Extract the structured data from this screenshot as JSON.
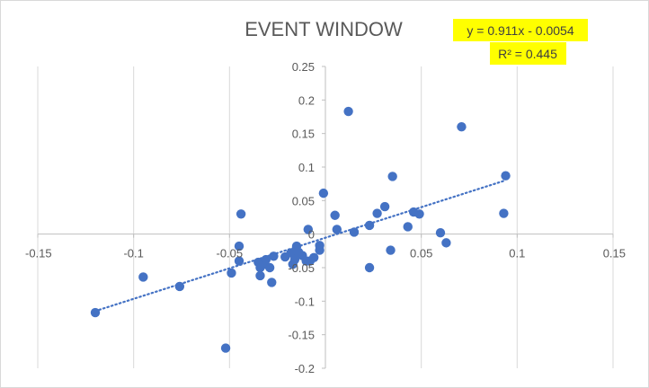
{
  "chart_data": {
    "type": "scatter",
    "title": "EVENT WINDOW",
    "xlabel": "",
    "ylabel": "",
    "xlim": [
      -0.15,
      0.15
    ],
    "ylim": [
      -0.2,
      0.25
    ],
    "x_ticks": [
      -0.15,
      -0.1,
      -0.05,
      0,
      0.05,
      0.1,
      0.15
    ],
    "x_tick_labels": [
      "-0.15",
      "-0.1",
      "-0.05",
      "0",
      "0.05",
      "0.1",
      "0.15"
    ],
    "y_ticks": [
      -0.2,
      -0.15,
      -0.1,
      -0.05,
      0,
      0.05,
      0.1,
      0.15,
      0.2,
      0.25
    ],
    "y_tick_labels": [
      "-0.2",
      "-0.15",
      "-0.1",
      "-0.05",
      "0",
      "0.05",
      "0.1",
      "0.15",
      "0.2",
      "0.25"
    ],
    "grid": "vertical",
    "marker_color": "#4472c4",
    "series": [
      {
        "points": [
          [
            -0.12,
            -0.117
          ],
          [
            -0.095,
            -0.064
          ],
          [
            -0.076,
            -0.078
          ],
          [
            -0.052,
            -0.17
          ],
          [
            -0.049,
            -0.058
          ],
          [
            -0.044,
            0.03
          ],
          [
            -0.045,
            -0.018
          ],
          [
            -0.045,
            -0.04
          ],
          [
            -0.035,
            -0.042
          ],
          [
            -0.034,
            -0.05
          ],
          [
            -0.034,
            -0.062
          ],
          [
            -0.032,
            -0.045
          ],
          [
            -0.031,
            -0.038
          ],
          [
            -0.029,
            -0.05
          ],
          [
            -0.028,
            -0.072
          ],
          [
            -0.027,
            -0.033
          ],
          [
            -0.021,
            -0.034
          ],
          [
            -0.018,
            -0.028
          ],
          [
            -0.017,
            -0.045
          ],
          [
            -0.016,
            -0.038
          ],
          [
            -0.015,
            -0.018
          ],
          [
            -0.014,
            -0.027
          ],
          [
            -0.012,
            -0.032
          ],
          [
            -0.01,
            -0.04
          ],
          [
            -0.009,
            0.007
          ],
          [
            -0.008,
            -0.04
          ],
          [
            -0.006,
            -0.035
          ],
          [
            -0.003,
            -0.017
          ],
          [
            -0.003,
            -0.024
          ],
          [
            -0.001,
            0.061
          ],
          [
            0.005,
            0.028
          ],
          [
            0.006,
            0.007
          ],
          [
            0.012,
            0.183
          ],
          [
            0.015,
            0.003
          ],
          [
            0.023,
            0.013
          ],
          [
            0.023,
            -0.05
          ],
          [
            0.027,
            0.031
          ],
          [
            0.031,
            0.041
          ],
          [
            0.034,
            -0.024
          ],
          [
            0.035,
            0.086
          ],
          [
            0.043,
            0.011
          ],
          [
            0.046,
            0.033
          ],
          [
            0.049,
            0.03
          ],
          [
            0.06,
            0.002
          ],
          [
            0.063,
            -0.013
          ],
          [
            0.071,
            0.16
          ],
          [
            0.094,
            0.087
          ],
          [
            0.093,
            0.031
          ]
        ]
      }
    ],
    "trendline": {
      "type": "linear",
      "slope": 0.911,
      "intercept": -0.0054,
      "x_range": [
        -0.12,
        0.094
      ],
      "color": "#4472c4",
      "style": "dotted",
      "equation_label": "y = 0.911x - 0.0054",
      "r2_label": "R² = 0.445",
      "label_background": "#ffff00"
    }
  }
}
